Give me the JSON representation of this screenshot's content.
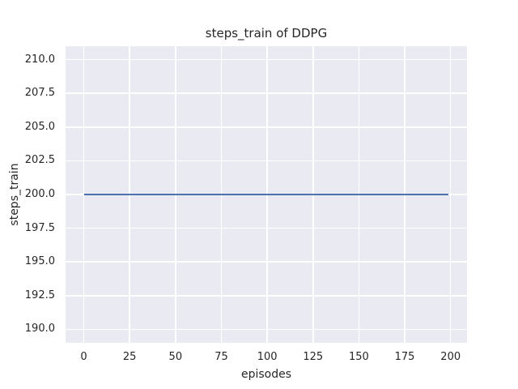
{
  "chart_data": {
    "type": "line",
    "title": "steps_train of DDPG",
    "xlabel": "episodes",
    "ylabel": "steps_train",
    "x_ticks": [
      0,
      25,
      50,
      75,
      100,
      125,
      150,
      175,
      200
    ],
    "x_tick_labels": [
      "0",
      "25",
      "50",
      "75",
      "100",
      "125",
      "150",
      "175",
      "200"
    ],
    "y_ticks": [
      190.0,
      192.5,
      195.0,
      197.5,
      200.0,
      202.5,
      205.0,
      207.5,
      210.0
    ],
    "y_tick_labels": [
      "190.0",
      "192.5",
      "195.0",
      "197.5",
      "200.0",
      "202.5",
      "205.0",
      "207.5",
      "210.0"
    ],
    "xlim": [
      -9.95,
      208.95
    ],
    "ylim": [
      189.0,
      211.0
    ],
    "grid": true,
    "legend": false,
    "series": [
      {
        "name": "steps_train",
        "color": "#4c72b0",
        "x": [
          0,
          199
        ],
        "y": [
          200,
          200
        ]
      }
    ],
    "style": {
      "figure_background": "#ffffff",
      "axes_background": "#eaeaf2",
      "grid_color": "#ffffff",
      "text_color": "#262626"
    }
  }
}
